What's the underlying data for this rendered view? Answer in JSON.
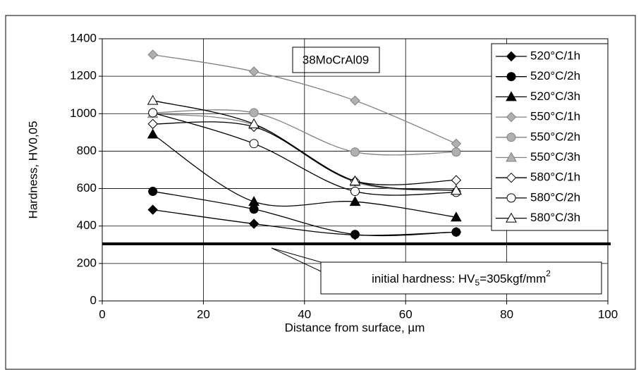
{
  "chart_data": {
    "type": "line",
    "annotation": "38MoCrAl09",
    "xlabel": "Distance from surface, µm",
    "ylabel": "Hardness, HV0,05",
    "x": [
      10,
      30,
      50,
      70
    ],
    "xlim": [
      0,
      100
    ],
    "xticks": [
      0,
      20,
      40,
      60,
      80,
      100
    ],
    "ylim": [
      0,
      1400
    ],
    "yticks": [
      0,
      200,
      400,
      600,
      800,
      1000,
      1200,
      1400
    ],
    "grid": true,
    "legend": "upper right",
    "reference_line": {
      "value": 305,
      "label": {
        "text": "initial hardness: HV",
        "sub": "5",
        "text2": "=305kgf/mm",
        "sup": "2"
      }
    },
    "series": [
      {
        "name": "520°C/1h",
        "color": "#000000",
        "marker": "diamond",
        "marker_fill": "#000000",
        "values": [
          487,
          412,
          352,
          368
        ]
      },
      {
        "name": "520°C/2h",
        "color": "#000000",
        "marker": "circle",
        "marker_fill": "#000000",
        "values": [
          585,
          490,
          355,
          368
        ]
      },
      {
        "name": "520°C/3h",
        "color": "#000000",
        "marker": "triangle",
        "marker_fill": "#000000",
        "values": [
          890,
          530,
          530,
          447
        ]
      },
      {
        "name": "550°C/1h",
        "color": "#808080",
        "marker": "diamond",
        "marker_fill": "#b0b0b0",
        "values": [
          1315,
          1225,
          1070,
          840
        ]
      },
      {
        "name": "550°C/2h",
        "color": "#808080",
        "marker": "circle",
        "marker_fill": "#b0b0b0",
        "values": [
          1005,
          1005,
          795,
          795
        ]
      },
      {
        "name": "550°C/3h",
        "color": "#808080",
        "marker": "triangle",
        "marker_fill": "#b0b0b0",
        "values": [
          1000,
          940,
          635,
          590
        ]
      },
      {
        "name": "580°C/1h",
        "color": "#000000",
        "marker": "diamond",
        "marker_fill": "#ffffff",
        "values": [
          945,
          930,
          640,
          645
        ]
      },
      {
        "name": "580°C/2h",
        "color": "#000000",
        "marker": "circle",
        "marker_fill": "#ffffff",
        "values": [
          1005,
          840,
          585,
          580
        ]
      },
      {
        "name": "580°C/3h",
        "color": "#000000",
        "marker": "triangle",
        "marker_fill": "#ffffff",
        "values": [
          1070,
          945,
          640,
          590
        ]
      }
    ]
  }
}
